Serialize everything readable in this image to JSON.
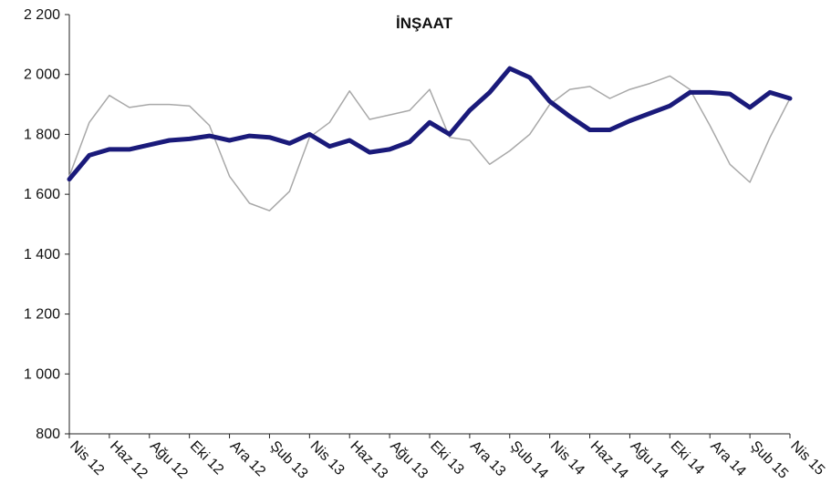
{
  "chart_data": {
    "type": "line",
    "title": "İNŞAAT",
    "xlabel": "",
    "ylabel": "",
    "ylim": [
      800,
      2200
    ],
    "y_ticks": [
      800,
      1000,
      1200,
      1400,
      1600,
      1800,
      2000,
      2200
    ],
    "y_tick_labels": [
      "800",
      "1 000",
      "1 200",
      "1 400",
      "1 600",
      "1 800",
      "2 000",
      "2 200"
    ],
    "x_tick_labels": [
      "Nis 12",
      "Haz 12",
      "Ağu 12",
      "Eki 12",
      "Ara 12",
      "Şub 13",
      "Nis 13",
      "Haz 13",
      "Ağu 13",
      "Eki 13",
      "Ara 13",
      "Şub 14",
      "Nis 14",
      "Haz 14",
      "Ağu 14",
      "Eki 14",
      "Ara 14",
      "Şub 15",
      "Nis 15"
    ],
    "categories": [
      "Nis 12",
      "May 12",
      "Haz 12",
      "Tem 12",
      "Ağu 12",
      "Eyl 12",
      "Eki 12",
      "Kas 12",
      "Ara 12",
      "Oca 13",
      "Şub 13",
      "Mar 13",
      "Nis 13",
      "May 13",
      "Haz 13",
      "Tem 13",
      "Ağu 13",
      "Eyl 13",
      "Eki 13",
      "Kas 13",
      "Ara 13",
      "Oca 14",
      "Şub 14",
      "Mar 14",
      "Nis 14",
      "May 14",
      "Haz 14",
      "Tem 14",
      "Ağu 14",
      "Eyl 14",
      "Eki 14",
      "Kas 14",
      "Ara 14",
      "Oca 15",
      "Şub 15",
      "Mar 15",
      "Nis 15"
    ],
    "grid": false,
    "series": [
      {
        "color": "#a8a8a8",
        "values": [
          1660,
          1840,
          1930,
          1890,
          1900,
          1900,
          1895,
          1830,
          1660,
          1570,
          1545,
          1610,
          1790,
          1840,
          1945,
          1850,
          1865,
          1880,
          1950,
          1790,
          1780,
          1700,
          1745,
          1800,
          1900,
          1950,
          1960,
          1920,
          1950,
          1970,
          1995,
          1950,
          1830,
          1700,
          1640,
          1790,
          1920
        ]
      },
      {
        "color": "#1a1a7a",
        "values": [
          1650,
          1730,
          1750,
          1750,
          1765,
          1780,
          1785,
          1795,
          1780,
          1795,
          1790,
          1770,
          1800,
          1760,
          1780,
          1740,
          1750,
          1775,
          1840,
          1800,
          1880,
          1940,
          2020,
          1990,
          1910,
          1860,
          1815,
          1815,
          1845,
          1870,
          1895,
          1940,
          1940,
          1935,
          1890,
          1940,
          1920
        ]
      }
    ]
  }
}
